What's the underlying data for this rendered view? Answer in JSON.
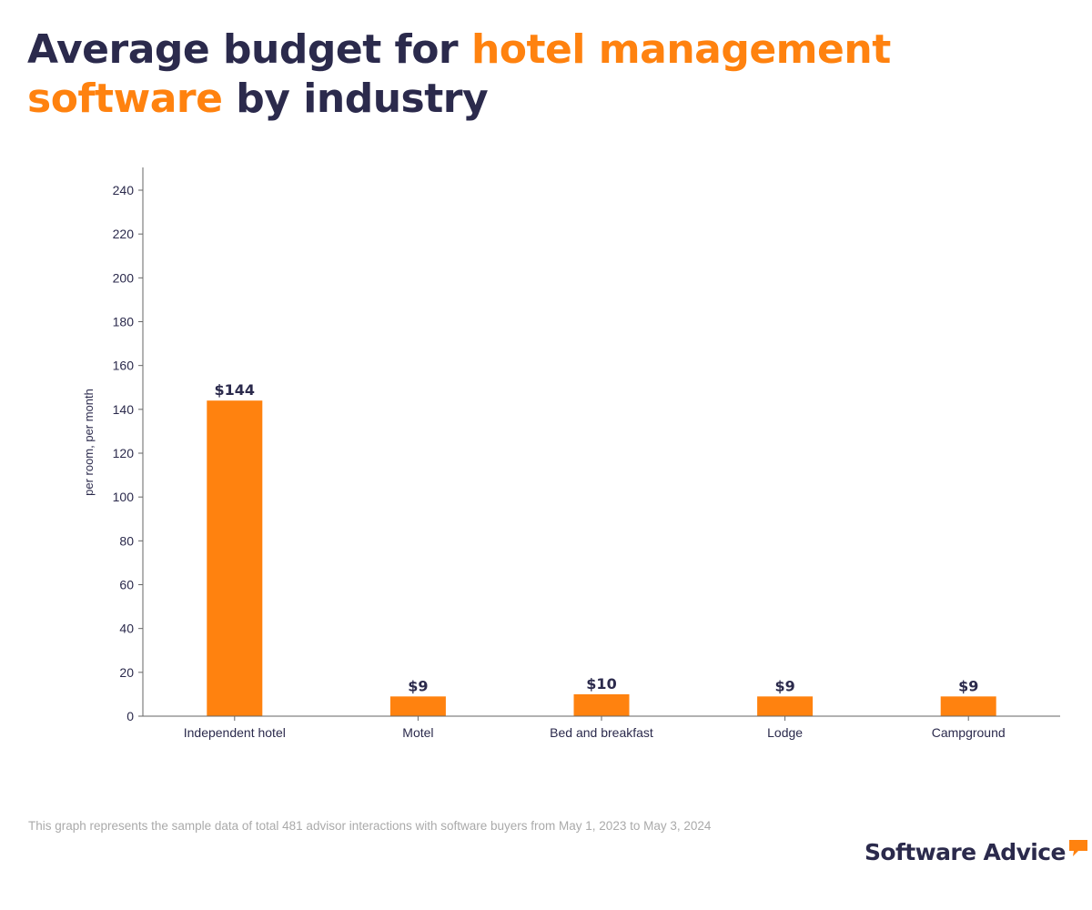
{
  "header": {
    "title_part1": "Average budget for ",
    "title_highlight": "hotel management software",
    "title_part2": " by industry"
  },
  "chart_data": {
    "type": "bar",
    "title": "Average budget for hotel management software by industry",
    "categories": [
      "Independent hotel",
      "Motel",
      "Bed and breakfast",
      "Lodge",
      "Campground"
    ],
    "values": [
      144,
      9,
      10,
      9,
      9
    ],
    "data_labels": [
      "$144",
      "$9",
      "$10",
      "$9",
      "$9"
    ],
    "xlabel": "",
    "ylabel": "per room, per month",
    "ylim": [
      0,
      250
    ],
    "yticks": [
      0,
      20,
      40,
      60,
      80,
      100,
      120,
      140,
      160,
      180,
      200,
      220,
      240
    ],
    "grid": false,
    "legend": "none"
  },
  "colors": {
    "bar": "#ff820f",
    "title": "#2b2a4c",
    "highlight": "#ff820f",
    "axis": "#666666",
    "tick_label": "#2b2a4c",
    "footnote": "#aaaaaa"
  },
  "footer": {
    "note": "This graph represents the sample data of total 481 advisor interactions with software buyers from May 1, 2023 to May 3, 2024",
    "logo_text": "Software Advice"
  }
}
